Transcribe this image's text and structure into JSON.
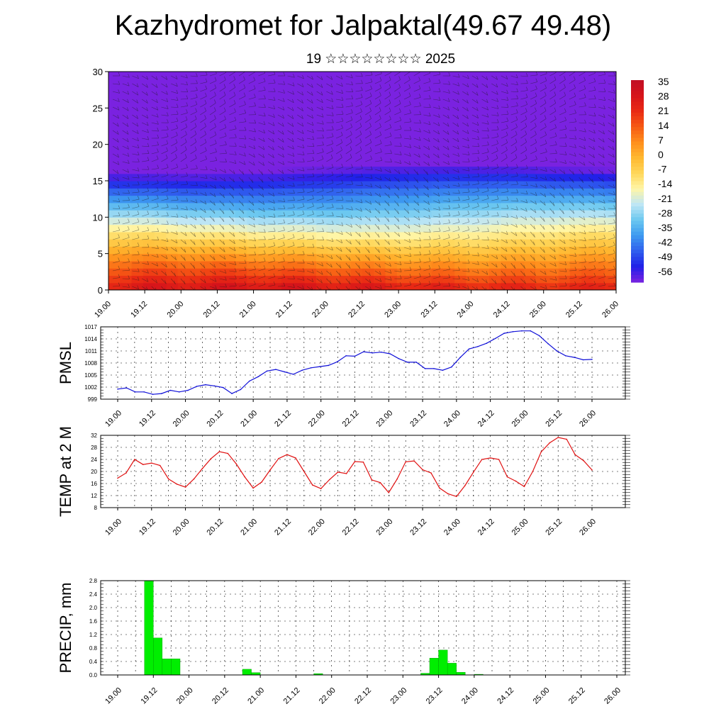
{
  "header": {
    "title": "Kazhydromet for Jalpaktal(49.67 49.48)",
    "subtitle": "19 ☆☆☆☆☆☆☆☆ 2025"
  },
  "chart_data": [
    {
      "type": "heatmap",
      "ylim": [
        0,
        30
      ],
      "y_ticks": [
        "0",
        "5",
        "10",
        "15",
        "20",
        "25",
        "30"
      ],
      "x_ticks": [
        "19.00",
        "19.12",
        "20.00",
        "20.12",
        "21.00",
        "21.12",
        "22.00",
        "22.12",
        "23.00",
        "23.12",
        "24.00",
        "24.12",
        "25.00",
        "25.12",
        "26.00"
      ],
      "colorbar_labels": [
        "35",
        "28",
        "21",
        "14",
        "7",
        "0",
        "-7",
        "-14",
        "-21",
        "-28",
        "-35",
        "-42",
        "-49",
        "-56"
      ],
      "colormap": [
        "#7a22e0",
        "#2020e8",
        "#3060ee",
        "#3d9af0",
        "#6cc8f0",
        "#bfe6f5",
        "#fff6a8",
        "#ffd75a",
        "#ffb830",
        "#ff8e1c",
        "#f65a14",
        "#e92a14",
        "#d6141a",
        "#c00e24"
      ],
      "overlay": "wind barbs"
    },
    {
      "type": "line",
      "ylabel": "PMSL",
      "ylim": [
        999,
        1017
      ],
      "y_ticks": [
        "999",
        "1002",
        "1005",
        "1008",
        "1011",
        "1014",
        "1017"
      ],
      "x_ticks": [
        "19.00",
        "19.12",
        "20.00",
        "20.12",
        "21.00",
        "21.12",
        "22.00",
        "22.12",
        "23.00",
        "23.12",
        "24.00",
        "24.12",
        "25.00",
        "25.12",
        "26.00"
      ],
      "color": "#1010d8",
      "series": [
        {
          "values": [
            1001.5,
            1001.8,
            1000.8,
            1000.8,
            1000.2,
            1000.4,
            1001.2,
            1000.8,
            1001.2,
            1002.2,
            1002.6,
            1002.3,
            1001.9,
            1000.4,
            1001.4,
            1003.5,
            1004.6,
            1006.0,
            1006.4,
            1005.8,
            1005.2,
            1006.2,
            1006.8,
            1007.1,
            1007.4,
            1008.3,
            1009.8,
            1009.7,
            1010.8,
            1010.5,
            1010.7,
            1010.3,
            1009.1,
            1008.2,
            1008.2,
            1006.6,
            1006.6,
            1006.2,
            1007.0,
            1009.4,
            1011.5,
            1012.1,
            1012.9,
            1014.1,
            1015.4,
            1015.8,
            1016.0,
            1016.0,
            1014.8,
            1012.8,
            1011.0,
            1009.8,
            1009.4,
            1008.8,
            1008.9
          ]
        }
      ]
    },
    {
      "type": "line",
      "ylabel": "TEMP at 2 M",
      "ylim": [
        8,
        32
      ],
      "y_ticks": [
        "8",
        "12",
        "16",
        "20",
        "24",
        "28",
        "32"
      ],
      "x_ticks": [
        "19.00",
        "19.12",
        "20.00",
        "20.12",
        "21.00",
        "21.12",
        "22.00",
        "22.12",
        "23.00",
        "23.12",
        "24.00",
        "24.12",
        "25.00",
        "25.12",
        "26.00"
      ],
      "color": "#e01010",
      "series": [
        {
          "values": [
            17.8,
            19.5,
            24.0,
            22.3,
            22.8,
            22.0,
            17.5,
            15.8,
            14.8,
            17.5,
            21.0,
            24.2,
            26.6,
            26.0,
            22.5,
            18.2,
            14.5,
            16.5,
            20.5,
            24.3,
            25.6,
            24.5,
            20.0,
            15.5,
            14.3,
            17.3,
            19.8,
            19.3,
            23.3,
            23.1,
            17.2,
            16.3,
            13.0,
            17.5,
            23.2,
            23.5,
            20.6,
            19.5,
            14.5,
            12.6,
            11.7,
            15.3,
            19.8,
            24.0,
            24.5,
            24.0,
            18.2,
            16.8,
            15.0,
            20.0,
            26.5,
            29.5,
            31.3,
            30.7,
            25.6,
            23.6,
            20.5
          ]
        }
      ]
    },
    {
      "type": "bar",
      "ylabel": "PRECIP, mm",
      "ylim": [
        0,
        2.8
      ],
      "y_ticks": [
        "0.0",
        "0.4",
        "0.8",
        "1.2",
        "1.6",
        "2.0",
        "2.4",
        "2.8"
      ],
      "x_ticks": [
        "19.00",
        "19.12",
        "20.00",
        "20.12",
        "21.00",
        "21.12",
        "22.00",
        "22.12",
        "23.00",
        "23.12",
        "24.00",
        "24.12",
        "25.00",
        "25.12",
        "26.00"
      ],
      "color": "#00ee00",
      "values": [
        0,
        0,
        0,
        2.8,
        1.1,
        0.48,
        0.48,
        0,
        0,
        0,
        0,
        0,
        0,
        0,
        0.17,
        0.07,
        0,
        0,
        0,
        0,
        0,
        0,
        0.04,
        0,
        0,
        0,
        0,
        0,
        0,
        0,
        0,
        0,
        0,
        0,
        0.05,
        0.5,
        0.74,
        0.35,
        0.08,
        0,
        0.02,
        0,
        0,
        0,
        0,
        0,
        0,
        0,
        0,
        0,
        0,
        0,
        0,
        0,
        0,
        0
      ]
    }
  ]
}
